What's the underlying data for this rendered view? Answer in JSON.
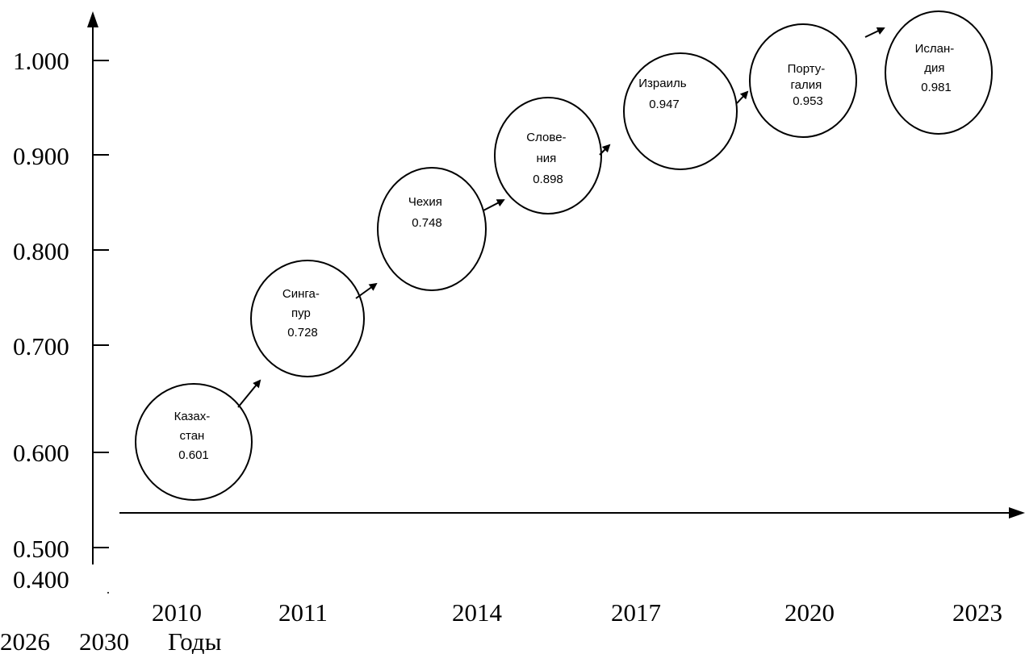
{
  "y_ticks": [
    "1.000",
    "0.900",
    "0.800",
    "0.700",
    "0.600",
    "0.500",
    "0.400"
  ],
  "x_ticks": [
    "2010",
    "2011",
    "2014",
    "2017",
    "2020",
    "2023"
  ],
  "bottom_labels": [
    "2026",
    "2030",
    "Годы"
  ],
  "nodes": [
    {
      "lines": [
        "Казах-",
        "стан",
        "0.601"
      ]
    },
    {
      "lines": [
        "Синга-",
        "пур",
        "0.728"
      ]
    },
    {
      "lines": [
        "Чехия",
        "0.748"
      ]
    },
    {
      "lines": [
        "Слове-",
        "ния",
        "0.898"
      ]
    },
    {
      "lines": [
        "Израиль",
        "0.947"
      ]
    },
    {
      "lines": [
        "Порту-",
        "галия",
        "0.953"
      ]
    },
    {
      "lines": [
        "Ислан-",
        "дия",
        "0.981"
      ]
    }
  ]
}
